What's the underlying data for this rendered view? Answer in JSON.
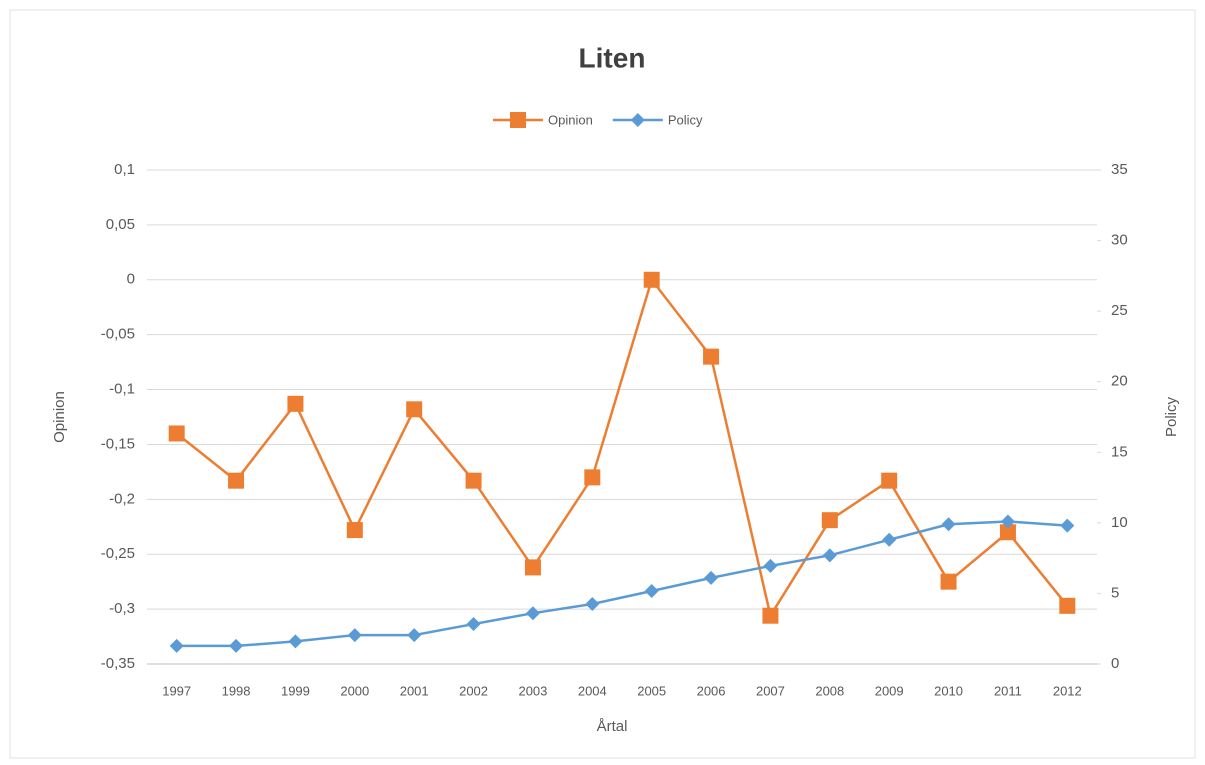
{
  "chart_data": {
    "type": "line",
    "title": "Liten",
    "xlabel": "Årtal",
    "ylabel": "Opinion",
    "y2label": "Policy",
    "categories": [
      "1997",
      "1998",
      "1999",
      "2000",
      "2001",
      "2002",
      "2003",
      "2004",
      "2005",
      "2006",
      "2007",
      "2008",
      "2009",
      "2010",
      "2011",
      "2012"
    ],
    "series": [
      {
        "name": "Opinion",
        "color": "#ed7d31",
        "marker": "square",
        "axis": "y",
        "values": [
          -0.14,
          -0.183,
          -0.113,
          -0.228,
          -0.118,
          -0.183,
          -0.262,
          -0.18,
          0,
          -0.07,
          -0.306,
          -0.219,
          -0.183,
          -0.275,
          -0.23,
          -0.297
        ]
      },
      {
        "name": "Policy",
        "color": "#5b9bd5",
        "marker": "diamond",
        "axis": "y2",
        "values": [
          1.28,
          1.28,
          1.6,
          2.05,
          2.05,
          2.83,
          3.6,
          4.25,
          5.17,
          6.1,
          6.95,
          7.7,
          8.8,
          9.9,
          10.1,
          9.8
        ]
      }
    ],
    "ylim": [
      -0.35,
      0.1
    ],
    "yticks": [
      {
        "value": -0.35,
        "label": "-0,35"
      },
      {
        "value": -0.3,
        "label": "-0,3"
      },
      {
        "value": -0.25,
        "label": "-0,25"
      },
      {
        "value": -0.2,
        "label": "-0,2"
      },
      {
        "value": -0.15,
        "label": "-0,15"
      },
      {
        "value": -0.1,
        "label": "-0,1"
      },
      {
        "value": -0.05,
        "label": "-0,05"
      },
      0,
      {
        "value": 0.05,
        "label": "0,05"
      },
      {
        "value": 0.1,
        "label": "0,1"
      }
    ],
    "y2lim": [
      0,
      35
    ],
    "y2ticks": [
      0,
      5,
      10,
      15,
      20,
      25,
      30,
      35
    ],
    "grid": true,
    "legend": "top"
  }
}
